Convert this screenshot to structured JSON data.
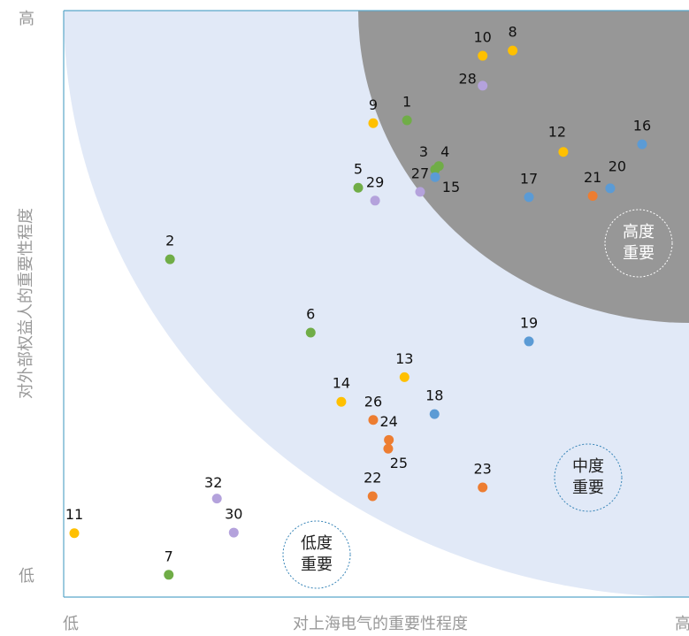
{
  "chart_data": {
    "type": "scatter",
    "x_label": "对上海电气的重要性程度",
    "y_label": "对外部权益人的重要性程度",
    "xlim": [
      0,
      100
    ],
    "ylim": [
      0,
      100
    ],
    "xticks": [
      {
        "value": 0,
        "label": "低"
      },
      {
        "value": 100,
        "label": "高"
      }
    ],
    "yticks": [
      {
        "value": 0,
        "label": "低"
      },
      {
        "value": 100,
        "label": "高"
      }
    ],
    "regions": [
      "高度重要",
      "中度重要",
      "低度重要"
    ],
    "points": {
      "labels": [
        "10",
        "8",
        "28",
        "9",
        "1",
        "12",
        "16",
        "3",
        "4",
        "5",
        "29",
        "27",
        "15",
        "17",
        "21",
        "20",
        "2",
        "6",
        "19",
        "13",
        "14",
        "18",
        "26",
        "24",
        "25",
        "23",
        "22",
        "32",
        "30",
        "11",
        "7"
      ],
      "x": [
        67.0,
        71.8,
        67.0,
        49.5,
        54.9,
        79.9,
        92.5,
        59.4,
        60.0,
        47.1,
        49.8,
        57.0,
        59.4,
        74.4,
        84.6,
        87.4,
        17.0,
        39.5,
        74.4,
        54.5,
        44.4,
        59.3,
        49.5,
        52.0,
        51.9,
        67.0,
        49.4,
        24.5,
        27.2,
        1.7,
        16.8
      ],
      "y": [
        92.3,
        93.2,
        87.2,
        80.8,
        81.3,
        75.9,
        77.2,
        72.9,
        73.5,
        69.8,
        67.6,
        69.1,
        71.6,
        68.2,
        68.4,
        69.7,
        57.6,
        45.1,
        43.6,
        37.5,
        33.3,
        31.2,
        30.2,
        26.8,
        25.3,
        18.7,
        17.2,
        16.8,
        11.0,
        10.9,
        3.8
      ],
      "colors": [
        "#ffc000",
        "#ffc000",
        "#b4a2dc",
        "#ffc000",
        "#70ad47",
        "#ffc000",
        "#5b9bd5",
        "#70ad47",
        "#70ad47",
        "#70ad47",
        "#b4a2dc",
        "#b4a2dc",
        "#5b9bd5",
        "#5b9bd5",
        "#ed7d31",
        "#5b9bd5",
        "#70ad47",
        "#70ad47",
        "#5b9bd5",
        "#ffc000",
        "#ffc000",
        "#5b9bd5",
        "#ed7d31",
        "#ed7d31",
        "#ed7d31",
        "#ed7d31",
        "#ed7d31",
        "#b4a2dc",
        "#b4a2dc",
        "#ffc000",
        "#70ad47"
      ]
    }
  }
}
